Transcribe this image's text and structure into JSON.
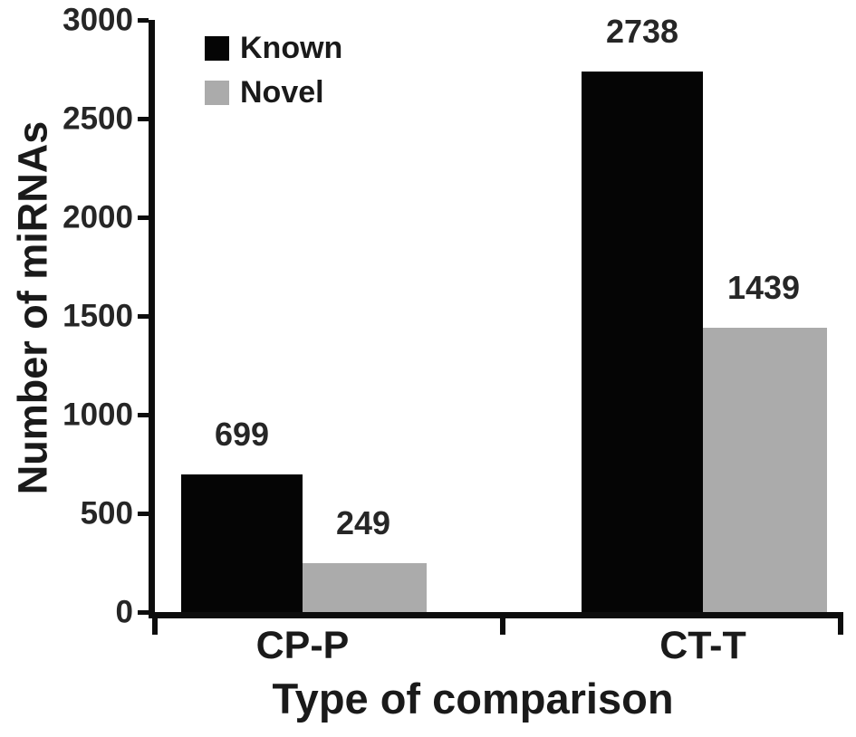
{
  "figure": {
    "background": "#ffffff",
    "axis_color": "#0d0d0d",
    "text_color": "#262626"
  },
  "chart_data": {
    "type": "bar",
    "title": "",
    "xlabel": "Type of comparison",
    "ylabel": "Number of miRNAs",
    "categories": [
      "CP-P",
      "CT-T"
    ],
    "series": [
      {
        "name": "Known",
        "color": "#050505",
        "values": [
          699,
          2738
        ]
      },
      {
        "name": "Novel",
        "color": "#ababab",
        "values": [
          249,
          1439
        ]
      }
    ],
    "ylim": [
      0,
      3000
    ],
    "yticks": [
      0,
      500,
      1000,
      1500,
      2000,
      2500,
      3000
    ],
    "grid": false,
    "legend_position": "top-left",
    "value_labels_shown": true
  }
}
